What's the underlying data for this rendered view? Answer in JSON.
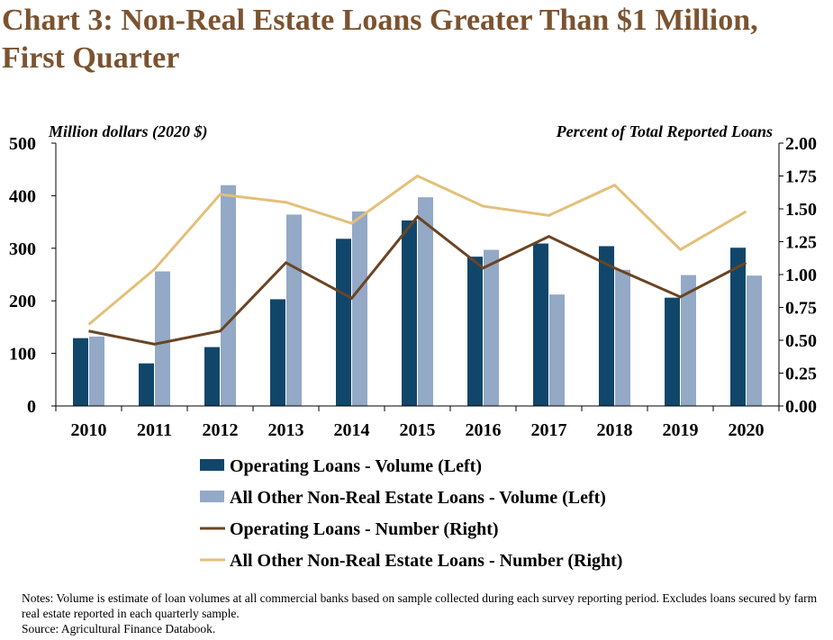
{
  "chart_data": {
    "type": "bar",
    "title": "Chart 3: Non-Real Estate Loans Greater Than $1 Million, First Quarter",
    "ylabel_left": "Million dollars (2020 $)",
    "ylabel_right": "Percent of Total Reported Loans",
    "categories": [
      "2010",
      "2011",
      "2012",
      "2013",
      "2014",
      "2015",
      "2016",
      "2017",
      "2018",
      "2019",
      "2020"
    ],
    "ylim_left": [
      0,
      500
    ],
    "yticks_left": [
      "0",
      "100",
      "200",
      "300",
      "400",
      "500"
    ],
    "ylim_right": [
      0,
      2.0
    ],
    "yticks_right": [
      "0.00",
      "0.25",
      "0.50",
      "0.75",
      "1.00",
      "1.25",
      "1.50",
      "1.75",
      "2.00"
    ],
    "grid": false,
    "legend_position": "bottom",
    "series": [
      {
        "name": "Operating Loans - Volume (Left)",
        "kind": "bar",
        "axis": "left",
        "color": "#11466b",
        "values": [
          129,
          81,
          112,
          203,
          318,
          353,
          284,
          309,
          304,
          206,
          301
        ]
      },
      {
        "name": "All Other Non-Real Estate Loans - Volume (Left)",
        "kind": "bar",
        "axis": "left",
        "color": "#93a9c6",
        "values": [
          132,
          256,
          420,
          364,
          370,
          397,
          297,
          212,
          259,
          249,
          248
        ]
      },
      {
        "name": "Operating Loans - Number (Right)",
        "kind": "line",
        "axis": "right",
        "color": "#6b4423",
        "values": [
          0.57,
          0.47,
          0.57,
          1.09,
          0.82,
          1.44,
          1.05,
          1.29,
          1.05,
          0.83,
          1.09
        ]
      },
      {
        "name": "All Other Non-Real Estate Loans - Number (Right)",
        "kind": "line",
        "axis": "right",
        "color": "#e3c07a",
        "values": [
          0.62,
          1.04,
          1.61,
          1.55,
          1.39,
          1.75,
          1.52,
          1.45,
          1.68,
          1.19,
          1.48
        ]
      }
    ]
  },
  "notes": {
    "line1": "Notes: Volume is estimate of loan volumes at all commercial banks based on sample collected during each survey reporting period. Excludes loans secured by farm real estate reported in each quarterly sample.",
    "line2": "Source: Agricultural Finance Databook."
  }
}
